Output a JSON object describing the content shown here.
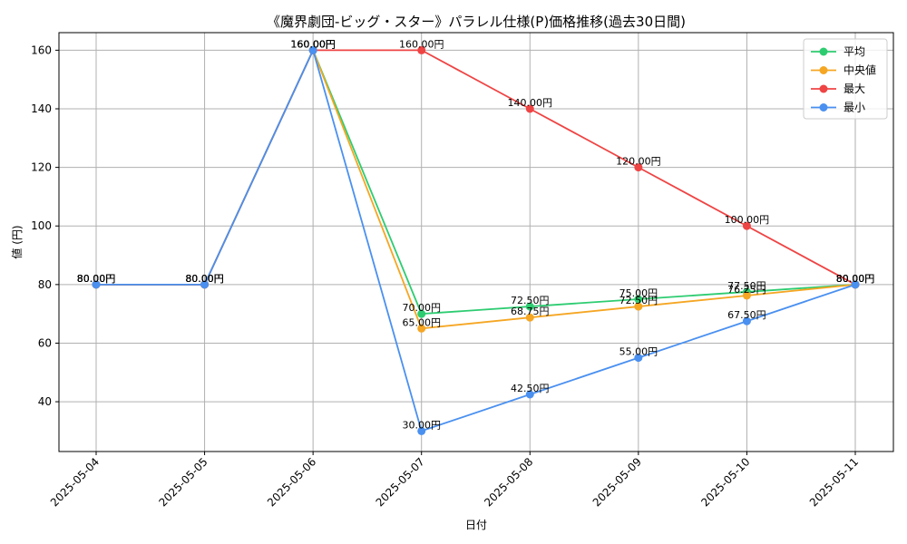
{
  "chart_data": {
    "type": "line",
    "title": "《魔界劇団-ビッグ・スター》パラレル仕様(P)価格推移(過去30日間)",
    "xlabel": "日付",
    "ylabel": "値 (円)",
    "categories": [
      "2025-05-04",
      "2025-05-05",
      "2025-05-06",
      "2025-05-07",
      "2025-05-08",
      "2025-05-09",
      "2025-05-10",
      "2025-05-11"
    ],
    "ylim": [
      23,
      166
    ],
    "yticks": [
      40,
      60,
      80,
      100,
      120,
      140,
      160
    ],
    "grid": true,
    "legend_position": "top-right",
    "label_suffix": "円",
    "series": [
      {
        "name": "平均",
        "color": "#2ecc71",
        "values": [
          80,
          80,
          160,
          70,
          72.5,
          75,
          77.5,
          80
        ]
      },
      {
        "name": "中央値",
        "color": "#f5a623",
        "values": [
          80,
          80,
          160,
          65,
          68.75,
          72.5,
          76.25,
          80
        ]
      },
      {
        "name": "最大",
        "color": "#ef4444",
        "values": [
          80,
          80,
          160,
          160,
          140,
          120,
          100,
          80
        ]
      },
      {
        "name": "最小",
        "color": "#4a90f0",
        "values": [
          80,
          80,
          160,
          30,
          42.5,
          55,
          67.5,
          80
        ]
      }
    ]
  }
}
